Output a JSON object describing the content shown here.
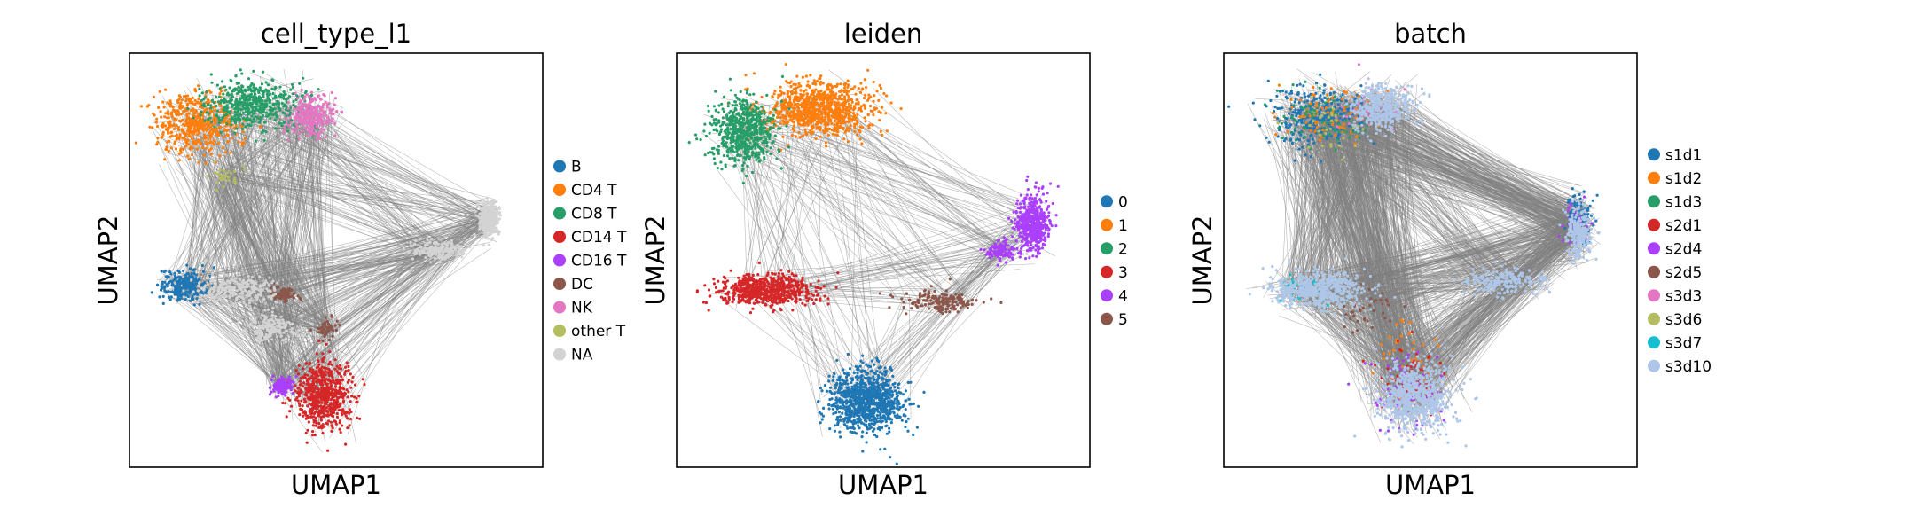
{
  "chart_data": [
    {
      "type": "scatter",
      "title": "cell_type_l1",
      "xlabel": "UMAP1",
      "ylabel": "UMAP2",
      "grid": false,
      "ticks": false,
      "legend_position": "right",
      "edges_shown": true,
      "edge_color": "#808080",
      "series": [
        {
          "name": "B",
          "color": "#1f77b4",
          "clusters": [
            {
              "x": 1.3,
              "y": 4.1,
              "sx": 0.5,
              "sy": 0.35,
              "n": 260
            }
          ]
        },
        {
          "name": "CD4 T",
          "color": "#ff7f0e",
          "clusters": [
            {
              "x": 1.6,
              "y": 8.2,
              "sx": 0.9,
              "sy": 0.7,
              "n": 520
            }
          ]
        },
        {
          "name": "CD8 T",
          "color": "#279e68",
          "clusters": [
            {
              "x": 3.0,
              "y": 8.7,
              "sx": 1.0,
              "sy": 0.55,
              "n": 520
            }
          ]
        },
        {
          "name": "CD14 T",
          "color": "#d62728",
          "clusters": [
            {
              "x": 4.7,
              "y": 1.3,
              "sx": 0.6,
              "sy": 0.8,
              "n": 620
            }
          ]
        },
        {
          "name": "CD16 T",
          "color": "#aa40fc",
          "clusters": [
            {
              "x": 3.7,
              "y": 1.55,
              "sx": 0.25,
              "sy": 0.22,
              "n": 130
            }
          ]
        },
        {
          "name": "DC",
          "color": "#8c564b",
          "clusters": [
            {
              "x": 3.7,
              "y": 3.9,
              "sx": 0.3,
              "sy": 0.15,
              "n": 70
            },
            {
              "x": 4.8,
              "y": 3.0,
              "sx": 0.2,
              "sy": 0.25,
              "n": 50
            }
          ]
        },
        {
          "name": "NK",
          "color": "#e377c2",
          "clusters": [
            {
              "x": 4.4,
              "y": 8.4,
              "sx": 0.5,
              "sy": 0.45,
              "n": 320
            }
          ]
        },
        {
          "name": "other T",
          "color": "#b5bd61",
          "clusters": [
            {
              "x": 2.3,
              "y": 6.9,
              "sx": 0.4,
              "sy": 0.3,
              "n": 30
            }
          ]
        },
        {
          "name": "NA",
          "color": "#d3d3d3",
          "clusters": [
            {
              "x": 8.7,
              "y": 5.8,
              "sx": 0.2,
              "sy": 0.4,
              "n": 420
            },
            {
              "x": 7.5,
              "y": 5.0,
              "sx": 0.6,
              "sy": 0.2,
              "n": 180
            },
            {
              "x": 2.5,
              "y": 4.0,
              "sx": 0.9,
              "sy": 0.3,
              "n": 260
            },
            {
              "x": 3.4,
              "y": 3.0,
              "sx": 0.5,
              "sy": 0.35,
              "n": 160
            }
          ]
        }
      ]
    },
    {
      "type": "scatter",
      "title": "leiden",
      "xlabel": "UMAP1",
      "ylabel": "UMAP2",
      "grid": false,
      "ticks": false,
      "legend_position": "right",
      "edges_shown": true,
      "edge_color": "#808080",
      "series": [
        {
          "name": "0",
          "color": "#1f77b4",
          "clusters": [
            {
              "x": 4.6,
              "y": 1.2,
              "sx": 0.8,
              "sy": 0.7,
              "n": 950
            }
          ]
        },
        {
          "name": "1",
          "color": "#ff7f0e",
          "clusters": [
            {
              "x": 3.4,
              "y": 8.6,
              "sx": 1.2,
              "sy": 0.6,
              "n": 900
            }
          ]
        },
        {
          "name": "2",
          "color": "#279e68",
          "clusters": [
            {
              "x": 1.6,
              "y": 8.0,
              "sx": 0.7,
              "sy": 0.75,
              "n": 650
            }
          ]
        },
        {
          "name": "3",
          "color": "#d62728",
          "clusters": [
            {
              "x": 2.2,
              "y": 4.0,
              "sx": 1.1,
              "sy": 0.35,
              "n": 650
            }
          ]
        },
        {
          "name": "4",
          "color": "#aa40fc",
          "clusters": [
            {
              "x": 8.6,
              "y": 5.7,
              "sx": 0.35,
              "sy": 0.6,
              "n": 520
            },
            {
              "x": 7.8,
              "y": 5.0,
              "sx": 0.3,
              "sy": 0.2,
              "n": 120
            }
          ]
        },
        {
          "name": "5",
          "color": "#8c564b",
          "clusters": [
            {
              "x": 6.4,
              "y": 3.7,
              "sx": 0.8,
              "sy": 0.25,
              "n": 170
            }
          ]
        }
      ]
    },
    {
      "type": "scatter",
      "title": "batch",
      "xlabel": "UMAP1",
      "ylabel": "UMAP2",
      "grid": false,
      "ticks": false,
      "legend_position": "right",
      "edges_shown": true,
      "edge_color": "#808080",
      "series": [
        {
          "name": "s1d1",
          "color": "#1f77b4",
          "clusters": [
            {
              "x": 2.2,
              "y": 8.4,
              "sx": 1.0,
              "sy": 0.7,
              "n": 300
            },
            {
              "x": 8.6,
              "y": 5.8,
              "sx": 0.3,
              "sy": 0.55,
              "n": 120
            }
          ]
        },
        {
          "name": "s1d2",
          "color": "#ff7f0e",
          "clusters": [
            {
              "x": 2.6,
              "y": 8.5,
              "sx": 1.1,
              "sy": 0.6,
              "n": 90
            },
            {
              "x": 4.4,
              "y": 2.2,
              "sx": 0.7,
              "sy": 0.9,
              "n": 40
            }
          ]
        },
        {
          "name": "s1d3",
          "color": "#279e68",
          "clusters": [
            {
              "x": 2.5,
              "y": 8.3,
              "sx": 1.1,
              "sy": 0.7,
              "n": 70
            }
          ]
        },
        {
          "name": "s2d1",
          "color": "#d62728",
          "clusters": [
            {
              "x": 4.5,
              "y": 1.8,
              "sx": 0.7,
              "sy": 0.9,
              "n": 60
            }
          ]
        },
        {
          "name": "s2d4",
          "color": "#aa40fc",
          "clusters": [
            {
              "x": 4.5,
              "y": 1.4,
              "sx": 0.8,
              "sy": 0.8,
              "n": 90
            },
            {
              "x": 8.5,
              "y": 5.6,
              "sx": 0.3,
              "sy": 0.5,
              "n": 40
            }
          ]
        },
        {
          "name": "s2d5",
          "color": "#8c564b",
          "clusters": [
            {
              "x": 3.5,
              "y": 3.5,
              "sx": 0.7,
              "sy": 0.5,
              "n": 40
            }
          ]
        },
        {
          "name": "s3d3",
          "color": "#e377c2",
          "clusters": [
            {
              "x": 3.5,
              "y": 8.6,
              "sx": 0.9,
              "sy": 0.5,
              "n": 40
            }
          ]
        },
        {
          "name": "s3d6",
          "color": "#b5bd61",
          "clusters": [
            {
              "x": 2.5,
              "y": 8.0,
              "sx": 0.9,
              "sy": 0.7,
              "n": 30
            }
          ]
        },
        {
          "name": "s3d7",
          "color": "#17becf",
          "clusters": [
            {
              "x": 2.0,
              "y": 4.0,
              "sx": 0.6,
              "sy": 0.4,
              "n": 30
            }
          ]
        },
        {
          "name": "s3d10",
          "color": "#aec7e8",
          "clusters": [
            {
              "x": 4.6,
              "y": 1.3,
              "sx": 0.8,
              "sy": 0.8,
              "n": 700
            },
            {
              "x": 2.3,
              "y": 4.0,
              "sx": 1.0,
              "sy": 0.4,
              "n": 500
            },
            {
              "x": 3.8,
              "y": 8.6,
              "sx": 0.7,
              "sy": 0.5,
              "n": 400
            },
            {
              "x": 8.6,
              "y": 5.5,
              "sx": 0.3,
              "sy": 0.6,
              "n": 250
            },
            {
              "x": 6.8,
              "y": 4.2,
              "sx": 0.9,
              "sy": 0.3,
              "n": 200
            }
          ]
        }
      ]
    }
  ]
}
